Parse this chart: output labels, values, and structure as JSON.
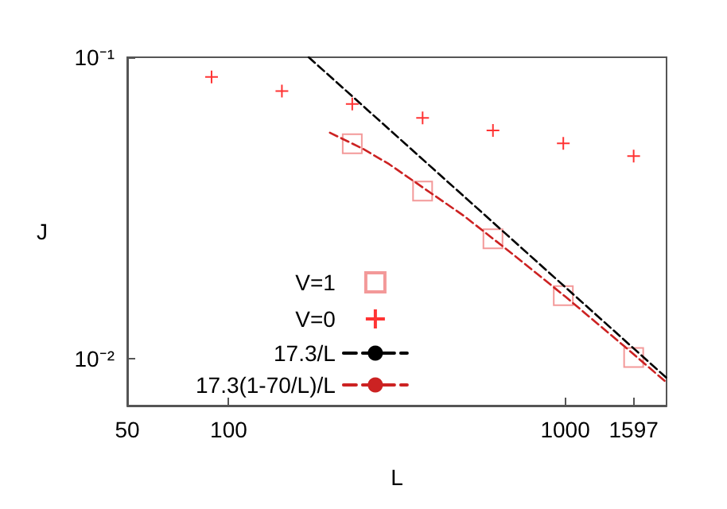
{
  "chart_data": {
    "type": "scatter",
    "xlabel": "L",
    "ylabel": "J",
    "log": "xy",
    "grid": false,
    "legend": "bottom left",
    "xlim": [
      50,
      2000
    ],
    "xticks": [
      50,
      100,
      1000,
      1597
    ],
    "ylim": [
      0.007,
      0.1
    ],
    "yticks": [
      {
        "value": 0.1,
        "label": "10⁻¹"
      },
      {
        "value": 0.01,
        "label": "10⁻²"
      }
    ],
    "series": [
      {
        "name": "V=1",
        "marker": "square",
        "color": "#f08080",
        "x": [
          233,
          377,
          610,
          987,
          1597
        ],
        "values": [
          0.0517,
          0.036,
          0.025,
          0.0162,
          0.0101
        ]
      },
      {
        "name": "V=0",
        "marker": "cross",
        "color": "#ff0000",
        "x": [
          89,
          144,
          233,
          377,
          610,
          987,
          1597
        ],
        "values": [
          0.086,
          0.0773,
          0.07,
          0.0629,
          0.0572,
          0.0518,
          0.047
        ]
      },
      {
        "name": "17.3/L",
        "type": "line",
        "marker": "none",
        "line_style": "dashed",
        "color": "#000000",
        "x": [
          173,
          2000
        ],
        "values": [
          0.1,
          0.00865
        ]
      },
      {
        "name": "17.3(1-70/L)/L",
        "type": "line",
        "marker": "none",
        "line_style": "dashed",
        "color": "#cc2222",
        "x": [
          200,
          250,
          300,
          500,
          700,
          1000,
          1500,
          2000
        ],
        "values": [
          0.0562,
          0.0498,
          0.0442,
          0.0298,
          0.0222,
          0.0161,
          0.011,
          0.00835
        ]
      }
    ]
  }
}
